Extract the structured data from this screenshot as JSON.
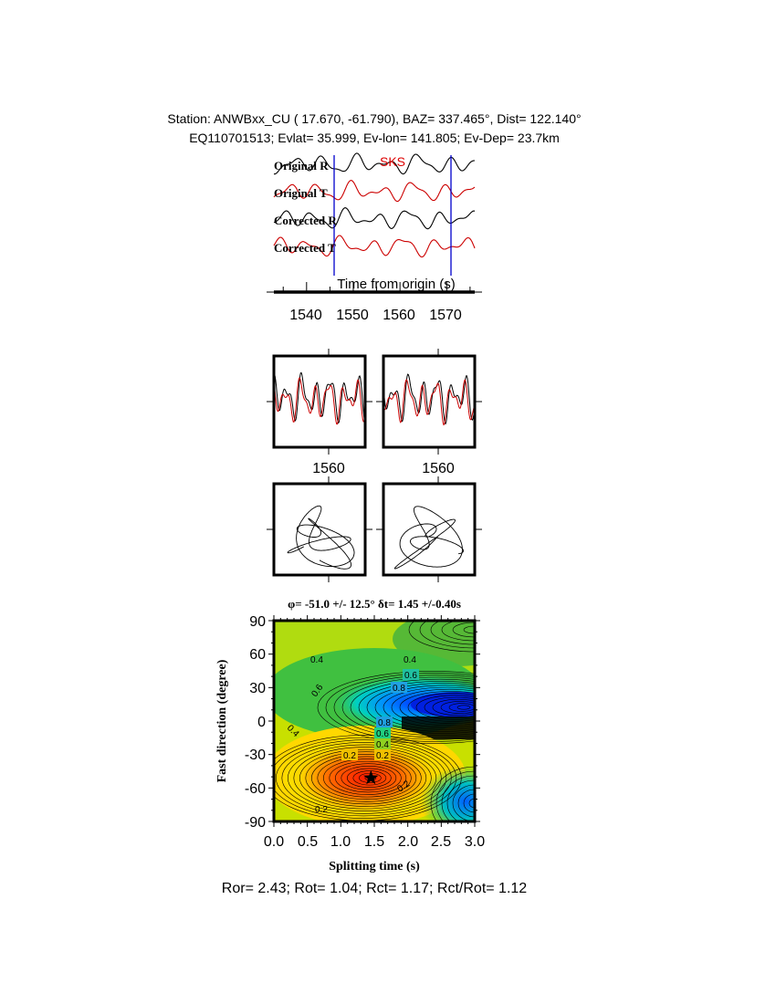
{
  "header": {
    "line1": "Station: ANWBxx_CU (  17.670,  -61.790), BAZ=  337.465°, Dist=  122.140°",
    "line2": "EQ110701513; Evlat=  35.999, Ev-lon= 141.805; Ev-Dep= 23.7km"
  },
  "colors": {
    "radial": "#000000",
    "transverse": "#cc0000",
    "window_marker": "#0000cc",
    "phase_label": "#dd0000"
  },
  "chart_data": [
    {
      "type": "line",
      "title": "",
      "phase_label": "SKS",
      "trace_labels": [
        "Original R",
        "Original T",
        "Corrected R",
        "Corrected T"
      ],
      "xlabel": "Time from origin (s)",
      "xticks": [
        "1540",
        "1550",
        "1560",
        "1570"
      ],
      "xlim": [
        1533,
        1576
      ],
      "window": [
        1545,
        1570
      ]
    },
    {
      "type": "line",
      "panels": [
        "fast/slow before correction",
        "fast/slow after correction"
      ],
      "xticks": [
        "1560",
        "1560"
      ]
    },
    {
      "type": "scatter",
      "panels": [
        "particle motion before",
        "particle motion after"
      ]
    },
    {
      "type": "heatmap",
      "title": "φ= -51.0 +/- 12.5° δt= 1.45 +/-0.40s",
      "xlabel": "Splitting time (s)",
      "ylabel": "Fast direction (degree)",
      "xlim": [
        0,
        3
      ],
      "ylim": [
        -90,
        90
      ],
      "xticks": [
        "0.0",
        "0.5",
        "1.0",
        "1.5",
        "2.0",
        "2.5",
        "3.0"
      ],
      "yticks": [
        "90",
        "60",
        "30",
        "0",
        "-30",
        "-60",
        "-90"
      ],
      "contour_labels": [
        "0.4",
        "0.4",
        "0.6",
        "0.8",
        "0.6",
        "0.4",
        "0.8",
        "0.6",
        "0.4",
        "0.2",
        "0.2",
        "0.2",
        "0.2"
      ],
      "best_fit": {
        "phi": -51.0,
        "dt": 1.45
      }
    }
  ],
  "footer": "Ror= 2.43; Rot= 1.04; Rct= 1.17; Rct/Rot= 1.12"
}
